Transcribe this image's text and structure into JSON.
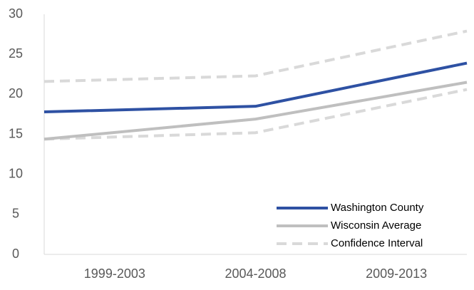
{
  "chart_data": {
    "type": "line",
    "categories": [
      "1999-2003",
      "2004-2008",
      "2009-2013"
    ],
    "series": [
      {
        "name": "Washington County",
        "color": "#2e51a3",
        "values": [
          17.8,
          18.5,
          23.9
        ]
      },
      {
        "name": "Wisconsin Average",
        "color": "#bfbfbf",
        "values": [
          14.4,
          16.9,
          21.5
        ]
      }
    ],
    "confidence_interval": {
      "name": "Confidence Interval",
      "color": "#d9d9d9",
      "upper": [
        21.6,
        22.3,
        27.9
      ],
      "lower": [
        14.4,
        15.2,
        20.6
      ]
    },
    "ylim": [
      0,
      30
    ],
    "yticks": [
      0,
      5,
      10,
      15,
      20,
      25,
      30
    ],
    "grid": false,
    "legend": "lower right"
  }
}
